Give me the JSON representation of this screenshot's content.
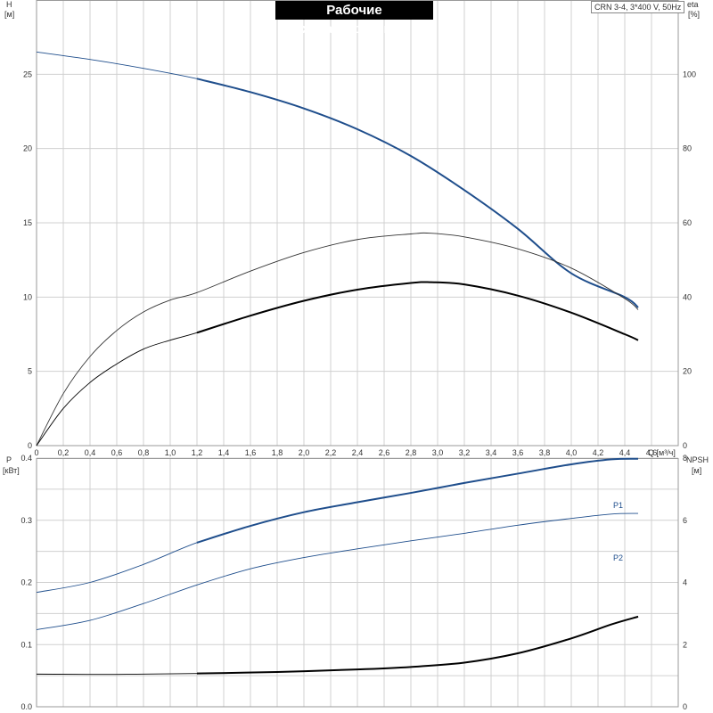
{
  "title": "Рабочие характеристики",
  "model": "CRN 3-4, 3*400 V, 50Hz",
  "colors": {
    "blue": "#1f4e8c",
    "black": "#000000",
    "dark": "#333333",
    "grid": "#d0d0d0"
  },
  "chart_data": [
    {
      "type": "line",
      "panel": "top",
      "x_label": "Q [м³/ч]",
      "x_ticks": [
        "0",
        "0,2",
        "0,4",
        "0,6",
        "0,8",
        "1,0",
        "1,2",
        "1,4",
        "1,6",
        "1,8",
        "2,0",
        "2,2",
        "2,4",
        "2,6",
        "2,8",
        "3,0",
        "3,2",
        "3,4",
        "3,6",
        "3,8",
        "4,0",
        "4,2",
        "4,4",
        "4,6"
      ],
      "xlim": [
        0,
        4.8
      ],
      "left_axis": {
        "label_line1": "H",
        "label_line2": "[м]",
        "ticks": [
          "0",
          "5",
          "10",
          "15",
          "20",
          "25"
        ],
        "ylim": [
          0,
          30
        ]
      },
      "right_axis": {
        "label_line1": "eta",
        "label_line2": "[%]",
        "ticks": [
          "0",
          "20",
          "40",
          "60",
          "80",
          "100"
        ],
        "ylim": [
          0,
          120
        ]
      },
      "grid": true,
      "series": [
        {
          "axis": "left",
          "color": "blue",
          "x": [
            0,
            0.4,
            0.8,
            1.2,
            1.6,
            2.0,
            2.4,
            2.8,
            3.2,
            3.6,
            4.0,
            4.4,
            4.5
          ],
          "y": [
            26.5,
            26.0,
            25.4,
            24.7,
            23.8,
            22.7,
            21.3,
            19.5,
            17.2,
            14.6,
            11.6,
            10.0,
            9.3
          ],
          "operating_range": [
            1.2,
            4.5
          ]
        },
        {
          "axis": "right",
          "color": "dark",
          "x": [
            0,
            0.2,
            0.4,
            0.6,
            0.8,
            1.0,
            1.2,
            1.6,
            2.0,
            2.4,
            2.8,
            2.95,
            3.2,
            3.6,
            4.0,
            4.4,
            4.5
          ],
          "y": [
            0,
            14,
            24,
            31,
            36,
            39.2,
            41.2,
            47,
            52,
            55.5,
            57.0,
            57.2,
            56.2,
            53,
            47.8,
            39.6,
            36.6
          ]
        },
        {
          "axis": "right",
          "color": "black",
          "x": [
            0,
            0.2,
            0.4,
            0.6,
            0.8,
            1.0,
            1.2,
            1.6,
            2.0,
            2.4,
            2.8,
            2.95,
            3.2,
            3.6,
            4.0,
            4.4,
            4.5
          ],
          "y": [
            0,
            10,
            17,
            22,
            26,
            28.4,
            30.4,
            35,
            39,
            42,
            43.8,
            44,
            43.4,
            40.4,
            35.8,
            30,
            28.4
          ],
          "operating_range": [
            1.2,
            4.5
          ]
        }
      ]
    },
    {
      "type": "line",
      "panel": "bottom",
      "xlim": [
        0,
        4.8
      ],
      "left_axis": {
        "label_line1": "P",
        "label_line2": "[кВт]",
        "ticks": [
          "0.0",
          "0.1",
          "0.2",
          "0.3",
          "0.4"
        ],
        "ylim": [
          0,
          0.4
        ]
      },
      "right_axis": {
        "label_line1": "NPSH",
        "label_line2": "[м]",
        "ticks": [
          "0",
          "2",
          "4",
          "6",
          "8"
        ],
        "ylim": [
          0,
          8
        ]
      },
      "grid": true,
      "series": [
        {
          "name": "P1",
          "axis": "left",
          "color": "blue",
          "x": [
            0,
            0.4,
            0.8,
            1.2,
            1.6,
            2.0,
            2.4,
            2.8,
            3.2,
            3.6,
            4.0,
            4.3,
            4.5
          ],
          "y": [
            0.184,
            0.2,
            0.229,
            0.264,
            0.291,
            0.313,
            0.329,
            0.344,
            0.36,
            0.375,
            0.39,
            0.398,
            0.399
          ],
          "operating_range": [
            1.2,
            4.5
          ]
        },
        {
          "name": "P2",
          "axis": "left",
          "color": "blue",
          "x": [
            0,
            0.4,
            0.8,
            1.2,
            1.6,
            2.0,
            2.4,
            2.8,
            3.2,
            3.6,
            4.0,
            4.3,
            4.5
          ],
          "y": [
            0.124,
            0.139,
            0.166,
            0.196,
            0.222,
            0.24,
            0.254,
            0.267,
            0.279,
            0.292,
            0.303,
            0.31,
            0.311
          ]
        },
        {
          "axis": "right",
          "color": "black",
          "x": [
            0,
            0.6,
            1.2,
            1.8,
            2.4,
            2.8,
            3.2,
            3.6,
            4.0,
            4.3,
            4.5
          ],
          "y": [
            1.05,
            1.04,
            1.07,
            1.12,
            1.2,
            1.28,
            1.42,
            1.72,
            2.2,
            2.65,
            2.9
          ],
          "operating_range": [
            1.2,
            4.5
          ]
        }
      ]
    }
  ]
}
